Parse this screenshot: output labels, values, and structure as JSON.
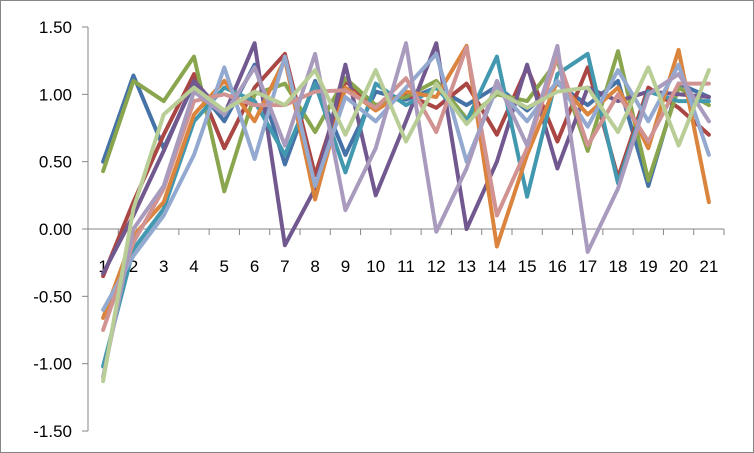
{
  "chart_data": {
    "type": "line",
    "title": "",
    "xlabel": "",
    "ylabel": "",
    "x": [
      "1",
      "2",
      "3",
      "4",
      "5",
      "6",
      "7",
      "8",
      "9",
      "10",
      "11",
      "12",
      "13",
      "14",
      "15",
      "16",
      "17",
      "18",
      "19",
      "20",
      "21"
    ],
    "ylim": [
      -1.5,
      1.5
    ],
    "yticks": [
      "-1.50",
      "-1.00",
      "-0.50",
      "0.00",
      "0.50",
      "1.00",
      "1.50"
    ],
    "grid": false,
    "legend": "none",
    "series": [
      {
        "color": "#4572A7",
        "values": [
          0.5,
          1.14,
          0.6,
          1.08,
          0.8,
          1.22,
          0.48,
          1.1,
          0.55,
          1.02,
          0.96,
          1.05,
          0.92,
          1.06,
          0.88,
          1.08,
          0.92,
          1.1,
          0.32,
          1.08,
          0.98
        ]
      },
      {
        "color": "#AA4643",
        "values": [
          -0.35,
          0.2,
          0.7,
          1.15,
          0.6,
          1.05,
          1.3,
          0.4,
          1.1,
          0.9,
          1.0,
          0.9,
          1.08,
          0.7,
          1.2,
          0.65,
          1.2,
          0.38,
          1.05,
          0.9,
          0.7
        ]
      },
      {
        "color": "#89A54E",
        "values": [
          0.43,
          1.1,
          0.95,
          1.28,
          0.28,
          1.0,
          1.08,
          0.72,
          1.12,
          0.92,
          0.98,
          1.1,
          0.82,
          1.0,
          0.95,
          1.25,
          0.58,
          1.32,
          0.36,
          1.05,
          0.92
        ]
      },
      {
        "color": "#71588F",
        "values": [
          -0.33,
          0.1,
          0.58,
          1.1,
          0.85,
          1.38,
          -0.12,
          0.3,
          1.22,
          0.25,
          0.8,
          1.38,
          0.0,
          0.5,
          1.22,
          0.45,
          1.05,
          0.95,
          1.02,
          1.0,
          0.98
        ]
      },
      {
        "color": "#4198AF",
        "values": [
          -1.02,
          -0.15,
          0.15,
          0.8,
          1.05,
          0.95,
          0.55,
          1.08,
          0.42,
          1.08,
          0.92,
          1.05,
          0.8,
          1.28,
          0.24,
          1.15,
          1.3,
          0.34,
          1.02,
          0.95,
          0.95
        ]
      },
      {
        "color": "#DB843D",
        "values": [
          -0.66,
          -0.05,
          0.2,
          0.85,
          1.1,
          0.8,
          1.26,
          0.22,
          1.05,
          0.88,
          1.02,
          0.98,
          1.36,
          -0.13,
          0.55,
          1.1,
          0.85,
          1.05,
          0.6,
          1.33,
          0.2
        ]
      },
      {
        "color": "#93A9CF",
        "values": [
          -0.6,
          -0.2,
          0.1,
          0.55,
          1.2,
          0.52,
          1.28,
          0.32,
          0.98,
          0.8,
          1.05,
          1.3,
          0.5,
          1.05,
          0.8,
          1.1,
          0.76,
          1.18,
          0.8,
          1.22,
          0.55
        ]
      },
      {
        "color": "#D19392",
        "values": [
          -0.75,
          -0.1,
          0.3,
          0.95,
          1.0,
          0.92,
          0.92,
          1.02,
          1.03,
          0.9,
          1.12,
          0.72,
          1.35,
          0.1,
          0.6,
          1.28,
          0.62,
          1.0,
          0.65,
          1.08,
          1.08
        ]
      },
      {
        "color": "#A99BBD",
        "values": [
          -1.1,
          0.0,
          0.32,
          1.02,
          0.85,
          1.2,
          0.62,
          1.3,
          0.14,
          0.6,
          1.38,
          -0.02,
          0.45,
          1.1,
          0.62,
          1.36,
          -0.17,
          0.3,
          1.0,
          1.15,
          0.8
        ]
      },
      {
        "color": "#B9CD96",
        "values": [
          -1.13,
          0.15,
          0.85,
          1.05,
          0.88,
          1.02,
          0.92,
          1.18,
          0.7,
          1.18,
          0.65,
          1.08,
          0.78,
          1.02,
          0.9,
          1.02,
          1.05,
          0.72,
          1.2,
          0.62,
          1.18
        ]
      }
    ]
  }
}
